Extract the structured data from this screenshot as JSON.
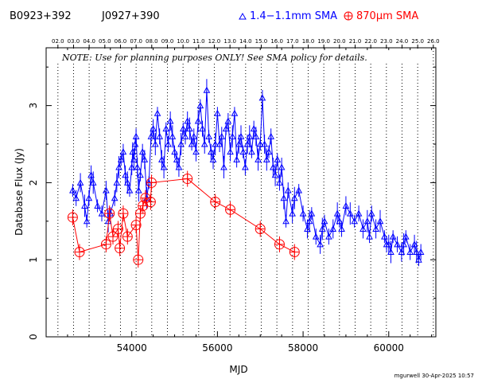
{
  "header": {
    "source_name": "B0923+392",
    "alt_name": "J0927+390",
    "legend_band1": "1.4−1.1mm SMA",
    "legend_band2": "870μm SMA"
  },
  "note": "NOTE: Use for planning purposes ONLY! See SMA policy for details.",
  "credit": "mgurwell 30-Apr-2025 10:57",
  "chart_data": {
    "type": "scatter",
    "xlabel": "MJD",
    "ylabel": "Database Flux (Jy)",
    "xlim": [
      52000,
      61100
    ],
    "ylim": [
      0,
      3.75
    ],
    "x_ticks": [
      54000,
      56000,
      58000,
      60000
    ],
    "y_ticks": [
      0,
      1,
      2,
      3
    ],
    "grid": "vertical dotted lines at year boundaries",
    "legend_placement": "top",
    "top_axis_labels": [
      "02.0",
      "03.0",
      "04.0",
      "05.0",
      "06.0",
      "07.0",
      "08.0",
      "09.0",
      "10.0",
      "11.0",
      "12.0",
      "13.0",
      "14.0",
      "15.0",
      "16.0",
      "17.0",
      "18.0",
      "19.0",
      "20.0",
      "21.0",
      "22.0",
      "23.0",
      "24.0",
      "25.0",
      "26.0"
    ],
    "top_axis_mjd": [
      52275,
      52640,
      53005,
      53371,
      53736,
      54101,
      54466,
      54832,
      55197,
      55562,
      55927,
      56293,
      56658,
      57023,
      57388,
      57754,
      58119,
      58484,
      58849,
      59215,
      59580,
      59945,
      60310,
      60676,
      61041
    ],
    "series": [
      {
        "name": "1.4−1.1mm SMA",
        "color": "#0000ff",
        "marker": "triangle",
        "x": [
          52620,
          52700,
          52800,
          52900,
          52950,
          53000,
          53050,
          53100,
          53200,
          53300,
          53400,
          53450,
          53500,
          53600,
          53650,
          53700,
          53750,
          53800,
          53850,
          53900,
          53950,
          54000,
          54020,
          54050,
          54080,
          54100,
          54130,
          54160,
          54200,
          54250,
          54300,
          54350,
          54400,
          54450,
          54500,
          54550,
          54600,
          54650,
          54700,
          54750,
          54800,
          54850,
          54900,
          54950,
          55000,
          55050,
          55100,
          55150,
          55200,
          55250,
          55300,
          55350,
          55400,
          55450,
          55500,
          55550,
          55600,
          55650,
          55700,
          55750,
          55800,
          55850,
          55900,
          55950,
          56000,
          56050,
          56100,
          56150,
          56200,
          56250,
          56300,
          56350,
          56400,
          56450,
          56500,
          56550,
          56600,
          56650,
          56700,
          56750,
          56800,
          56850,
          56900,
          56950,
          57000,
          57050,
          57100,
          57150,
          57200,
          57250,
          57300,
          57350,
          57400,
          57450,
          57500,
          57550,
          57600,
          57650,
          57750,
          57800,
          57900,
          58000,
          58100,
          58150,
          58200,
          58300,
          58400,
          58450,
          58500,
          58600,
          58700,
          58800,
          58850,
          58900,
          59000,
          59100,
          59200,
          59300,
          59400,
          59500,
          59550,
          59600,
          59700,
          59800,
          59900,
          59950,
          60000,
          60050,
          60100,
          60200,
          60300,
          60350,
          60400,
          60500,
          60600,
          60650,
          60700,
          60750
        ],
        "y": [
          1.9,
          1.8,
          2.0,
          1.7,
          1.5,
          1.8,
          2.1,
          2.0,
          1.7,
          1.6,
          1.9,
          1.5,
          1.6,
          1.8,
          2.0,
          2.2,
          2.3,
          2.4,
          2.1,
          2.0,
          1.9,
          2.2,
          2.4,
          2.3,
          2.5,
          2.6,
          2.2,
          1.9,
          2.1,
          2.4,
          2.3,
          1.8,
          2.0,
          2.6,
          2.7,
          2.5,
          2.9,
          2.6,
          2.3,
          2.2,
          2.7,
          2.5,
          2.8,
          2.6,
          2.4,
          2.3,
          2.2,
          2.5,
          2.7,
          2.6,
          2.8,
          2.7,
          2.5,
          2.6,
          2.4,
          2.8,
          3.0,
          2.7,
          2.5,
          3.2,
          2.6,
          2.4,
          2.3,
          2.5,
          2.9,
          2.5,
          2.6,
          2.2,
          2.7,
          2.8,
          2.4,
          2.6,
          2.9,
          2.3,
          2.5,
          2.6,
          2.4,
          2.2,
          2.5,
          2.6,
          2.4,
          2.7,
          2.6,
          2.3,
          2.5,
          3.1,
          2.5,
          2.3,
          2.4,
          2.6,
          2.2,
          2.1,
          2.3,
          2.0,
          2.2,
          1.8,
          1.5,
          1.9,
          1.6,
          1.8,
          1.9,
          1.6,
          1.4,
          1.5,
          1.6,
          1.3,
          1.2,
          1.4,
          1.5,
          1.3,
          1.4,
          1.6,
          1.5,
          1.4,
          1.7,
          1.6,
          1.5,
          1.6,
          1.4,
          1.5,
          1.3,
          1.6,
          1.4,
          1.5,
          1.3,
          1.2,
          1.2,
          1.1,
          1.3,
          1.2,
          1.1,
          1.2,
          1.3,
          1.1,
          1.2,
          1.1,
          1.0,
          1.1
        ]
      },
      {
        "name": "870μm SMA",
        "color": "#ff0000",
        "marker": "circle-plus",
        "x": [
          52620,
          52780,
          53400,
          53480,
          53560,
          53680,
          53720,
          53800,
          53900,
          54100,
          54150,
          54200,
          54260,
          54320,
          54440,
          54460,
          55300,
          55950,
          56300,
          57000,
          57450,
          57800
        ],
        "y": [
          1.55,
          1.1,
          1.2,
          1.6,
          1.3,
          1.4,
          1.15,
          1.6,
          1.3,
          1.45,
          1.0,
          1.6,
          1.7,
          1.8,
          1.75,
          2.0,
          2.05,
          1.75,
          1.65,
          1.4,
          1.2,
          1.1
        ]
      }
    ]
  }
}
